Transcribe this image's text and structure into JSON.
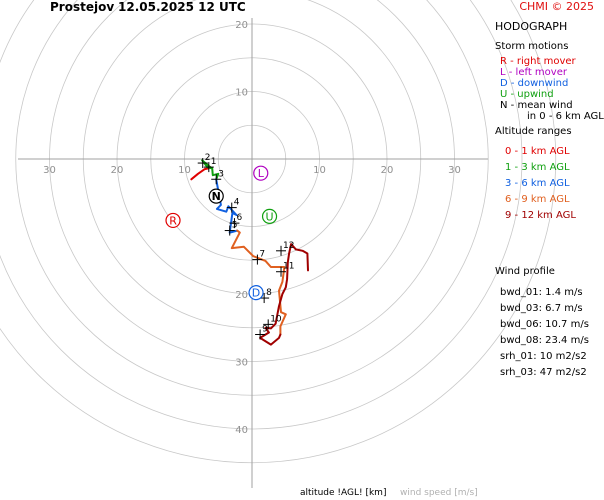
{
  "header": {
    "station": "Prostejov",
    "datetime": "12.05.2025 12 UTC"
  },
  "credit": "CHMI © 2025",
  "panel": {
    "title": "HODOGRAPH",
    "storm_motions_title": "Storm motions",
    "storm_motions": [
      {
        "text": "R - right mover",
        "color": "#e00000"
      },
      {
        "text": "L - left mover",
        "color": "#b000c0"
      },
      {
        "text": "D - downwind",
        "color": "#1060e0"
      },
      {
        "text": "U - upwind",
        "color": "#10a010"
      },
      {
        "text": "N - mean wind",
        "color": "#000000"
      },
      {
        "text": "in 0 - 6 km AGL",
        "color": "#000000"
      }
    ],
    "altitude_title": "Altitude ranges",
    "altitude_ranges": [
      {
        "text": "0 - 1 km AGL",
        "color": "#e00000"
      },
      {
        "text": "1 - 3 km AGL",
        "color": "#10a010"
      },
      {
        "text": "3 - 6 km AGL",
        "color": "#1060e0"
      },
      {
        "text": "6 - 9 km AGL",
        "color": "#e06020"
      },
      {
        "text": "9 - 12 km AGL",
        "color": "#a00000"
      }
    ],
    "wind_profile_title": "Wind profile",
    "wind_profile": [
      {
        "text": "bwd_01: 1.4 m/s"
      },
      {
        "text": "bwd_03: 6.7 m/s"
      },
      {
        "text": "bwd_06: 10.7 m/s"
      },
      {
        "text": "bwd_08: 23.4 m/s"
      },
      {
        "text": "srh_01: 10 m2/s2"
      },
      {
        "text": "srh_03: 47 m2/s2"
      }
    ]
  },
  "footer": {
    "altitude_label": "altitude !AGL! [km]",
    "speed_label": "wind speed [m/s]"
  },
  "colors": {
    "ring": "#c8c8c8",
    "axis": "#a0a0a0",
    "layer_0_1": "#e00000",
    "layer_1_3": "#10a010",
    "layer_3_6": "#1060e0",
    "layer_6_9": "#e06020",
    "layer_9_12": "#a00000"
  },
  "chart_data": {
    "type": "line",
    "title": "HODOGRAPH",
    "xlabel": "",
    "ylabel": "",
    "rings": [
      5,
      10,
      15,
      20,
      25,
      30,
      35,
      40,
      45
    ],
    "x_ticks": [
      -30,
      -20,
      -10,
      10,
      20,
      30
    ],
    "x_tick_labels": [
      "30",
      "20",
      "10",
      "10",
      "20",
      "30"
    ],
    "y_ticks": [
      20,
      10,
      -20,
      -30,
      -40
    ],
    "y_tick_labels": [
      "20",
      "10",
      "20",
      "30",
      "40"
    ],
    "grid": true,
    "storm_motions": [
      {
        "label": "R",
        "u": -11.7,
        "v": -9.1,
        "color": "#e00000"
      },
      {
        "label": "L",
        "u": 1.3,
        "v": -2.1,
        "color": "#b000c0"
      },
      {
        "label": "D",
        "u": 0.6,
        "v": -19.8,
        "color": "#1060e0"
      },
      {
        "label": "U",
        "u": 2.6,
        "v": -8.5,
        "color": "#10a010"
      },
      {
        "label": "N",
        "u": -5.3,
        "v": -5.5,
        "color": "#000000"
      }
    ],
    "series": [
      {
        "name": "0 - 1 km AGL",
        "color": "#e00000",
        "u": [
          -9.0,
          -8.0,
          -7.0,
          -6.5,
          -6.2
        ],
        "v": [
          -3.0,
          -2.2,
          -1.5,
          -1.4,
          -1.2
        ]
      },
      {
        "name": "1 - 3 km AGL",
        "color": "#10a010",
        "u": [
          -6.2,
          -7.4,
          -6.6,
          -5.9,
          -5.8,
          -5.0,
          -5.3
        ],
        "v": [
          -1.2,
          -0.2,
          -1.2,
          -1.4,
          -2.4,
          -2.2,
          -3.0
        ]
      },
      {
        "name": "3 - 6 km AGL",
        "color": "#1060e0",
        "u": [
          -5.3,
          -4.6,
          -5.2,
          -3.8,
          -3.5,
          -2.3,
          -2.9,
          -3.3,
          -2.2
        ],
        "v": [
          -3.0,
          -6.8,
          -7.4,
          -7.8,
          -7.0,
          -8.3,
          -8.0,
          -10.9,
          -10.6
        ]
      },
      {
        "name": "6 - 9 km AGL",
        "color": "#e06020",
        "u": [
          -2.2,
          -1.8,
          -3.0,
          -1.2,
          0.2,
          2.0,
          2.8,
          4.8,
          4.5,
          4.0,
          4.3,
          5.0,
          4.2,
          4.2
        ],
        "v": [
          -10.6,
          -10.9,
          -13.2,
          -13.0,
          -14.4,
          -15.1,
          -16.0,
          -16.0,
          -18.2,
          -19.5,
          -22.7,
          -23.0,
          -24.8,
          -26.0
        ]
      },
      {
        "name": "9 - 12 km AGL",
        "color": "#a00000",
        "u": [
          4.2,
          4.0,
          2.8,
          1.2,
          2.5,
          2.0,
          2.8,
          3.5,
          4.0,
          4.5,
          5.0,
          5.2,
          5.3,
          5.5,
          5.8,
          6.5,
          7.5,
          8.2,
          8.3
        ],
        "v": [
          -26.0,
          -26.5,
          -27.5,
          -26.5,
          -25.7,
          -25.0,
          -25.1,
          -24.4,
          -21.8,
          -20.0,
          -19.0,
          -17.8,
          -15.3,
          -14.0,
          -12.6,
          -13.4,
          -13.6,
          -14.0,
          -16.5
        ]
      }
    ],
    "altitude_markers": [
      {
        "label": "1",
        "u": -6.4,
        "v": -1.2
      },
      {
        "label": "2",
        "u": -7.3,
        "v": -0.6
      },
      {
        "label": "3",
        "u": -5.3,
        "v": -3.0
      },
      {
        "label": "4",
        "u": -3.0,
        "v": -7.2
      },
      {
        "label": "5",
        "u": -3.3,
        "v": -10.6
      },
      {
        "label": "6",
        "u": -2.6,
        "v": -9.5
      },
      {
        "label": "7",
        "u": 0.8,
        "v": -14.9
      },
      {
        "label": "8",
        "u": 1.8,
        "v": -20.6
      },
      {
        "label": "9",
        "u": 1.2,
        "v": -26.0
      },
      {
        "label": "10",
        "u": 2.4,
        "v": -24.5
      },
      {
        "label": "11",
        "u": 4.3,
        "v": -16.7
      },
      {
        "label": "12",
        "u": 4.3,
        "v": -13.6
      }
    ]
  }
}
